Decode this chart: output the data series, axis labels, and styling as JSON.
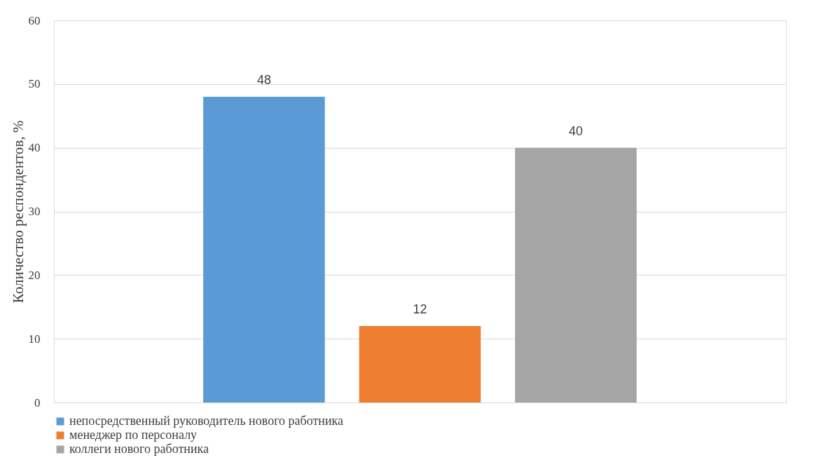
{
  "chart_data": {
    "type": "bar",
    "categories": [
      null
    ],
    "series": [
      {
        "name": "непосредственный руководитель нового работника",
        "color": "#5b9bd5",
        "values": [
          48
        ]
      },
      {
        "name": "менеджер по персоналу",
        "color": "#ed7d31",
        "values": [
          12
        ]
      },
      {
        "name": "коллеги нового работника",
        "color": "#a5a5a5",
        "values": [
          40
        ]
      }
    ],
    "ylabel": "Количество респондентов, %",
    "ylim": [
      0,
      60
    ],
    "yticks": [
      0,
      10,
      20,
      30,
      40,
      50,
      60
    ],
    "grid": "y",
    "legend": "bottom",
    "data_labels": true
  }
}
